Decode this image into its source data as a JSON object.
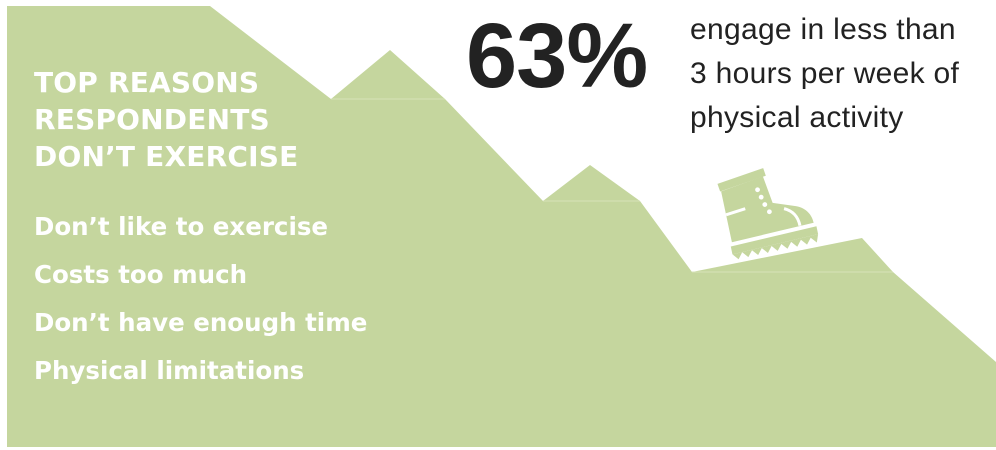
{
  "colors": {
    "mountain_green": "#c5d69e",
    "heading_text": "#ffffff",
    "stat_text": "#222222"
  },
  "panel": {
    "heading_lines": [
      "TOP REASONS",
      "RESPONDENTS",
      "DON’T EXERCISE"
    ],
    "reasons": [
      "Don’t like to exercise",
      "Costs too much",
      "Don’t have enough time",
      "Physical limitations"
    ]
  },
  "stat": {
    "value": "63%",
    "description_lines": [
      "engage in less than",
      "3 hours per week of",
      "physical activity"
    ]
  },
  "icons": {
    "shoe": "sneaker-icon"
  }
}
